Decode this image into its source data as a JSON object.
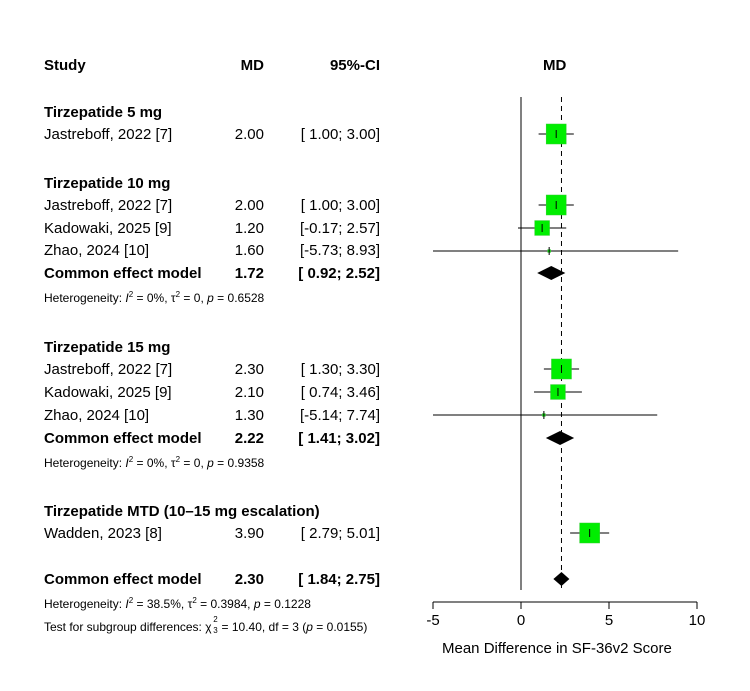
{
  "chart_data": {
    "type": "forest",
    "headers": {
      "study": "Study",
      "md": "MD",
      "ci": "95%-CI",
      "plot": "MD"
    },
    "xlabel": "Mean Difference in SF-36v2 Score",
    "xlim": [
      -5,
      10
    ],
    "xticks": [
      -5,
      0,
      5,
      10
    ],
    "reference_line": 0,
    "overall_line": 2.3,
    "groups": [
      {
        "label": "Tirzepatide 5 mg",
        "studies": [
          {
            "study": "Jastreboff, 2022 [7]",
            "md": 2.0,
            "md_text": "2.00",
            "lo": 1.0,
            "hi": 3.0,
            "ci_text": "[ 1.00; 3.00]",
            "weight": 1.0
          }
        ]
      },
      {
        "label": "Tirzepatide 10 mg",
        "studies": [
          {
            "study": "Jastreboff, 2022 [7]",
            "md": 2.0,
            "md_text": "2.00",
            "lo": 1.0,
            "hi": 3.0,
            "ci_text": "[ 1.00; 3.00]",
            "weight": 1.0
          },
          {
            "study": "Kadowaki, 2025 [9]",
            "md": 1.2,
            "md_text": "1.20",
            "lo": -0.17,
            "hi": 2.57,
            "ci_text": "[-0.17; 2.57]",
            "weight": 0.55
          },
          {
            "study": "Zhao, 2024 [10]",
            "md": 1.6,
            "md_text": "1.60",
            "lo": -5.73,
            "hi": 8.93,
            "ci_text": "[-5.73; 8.93]",
            "weight": 0.02
          }
        ],
        "summary": {
          "label": "Common effect model",
          "md": 1.72,
          "md_text": "1.72",
          "lo": 0.92,
          "hi": 2.52,
          "ci_text": "[ 0.92; 2.52]"
        },
        "heterogeneity": {
          "prefix": "Heterogeneity: ",
          "I2": "0%",
          "tau2": "0",
          "p": "0.6528"
        }
      },
      {
        "label": "Tirzepatide 15 mg",
        "studies": [
          {
            "study": "Jastreboff, 2022 [7]",
            "md": 2.3,
            "md_text": "2.30",
            "lo": 1.3,
            "hi": 3.3,
            "ci_text": "[ 1.30; 3.30]",
            "weight": 1.0
          },
          {
            "study": "Kadowaki, 2025 [9]",
            "md": 2.1,
            "md_text": "2.10",
            "lo": 0.74,
            "hi": 3.46,
            "ci_text": "[ 0.74; 3.46]",
            "weight": 0.55
          },
          {
            "study": "Zhao, 2024 [10]",
            "md": 1.3,
            "md_text": "1.30",
            "lo": -5.14,
            "hi": 7.74,
            "ci_text": "[-5.14; 7.74]",
            "weight": 0.02
          }
        ],
        "summary": {
          "label": "Common effect model",
          "md": 2.22,
          "md_text": "2.22",
          "lo": 1.41,
          "hi": 3.02,
          "ci_text": "[ 1.41; 3.02]"
        },
        "heterogeneity": {
          "prefix": "Heterogeneity: ",
          "I2": "0%",
          "tau2": "0",
          "p": "0.9358"
        }
      },
      {
        "label": "Tirzepatide MTD (10–15 mg escalation)",
        "studies": [
          {
            "study": "Wadden, 2023 [8]",
            "md": 3.9,
            "md_text": "3.90",
            "lo": 2.79,
            "hi": 5.01,
            "ci_text": "[ 2.79; 5.01]",
            "weight": 1.0
          }
        ]
      }
    ],
    "overall": {
      "label": "Common effect model",
      "md": 2.3,
      "md_text": "2.30",
      "lo": 1.84,
      "hi": 2.75,
      "ci_text": "[ 1.84; 2.75]",
      "heterogeneity": {
        "prefix": "Heterogeneity: ",
        "I2": "38.5%",
        "tau2": "0.3984",
        "p": "0.1228"
      },
      "subgroup_test": {
        "prefix": "Test for subgroup differences: ",
        "chi_sub": "3",
        "chi_sup": "2",
        "value": "10.40",
        "df": "3",
        "p": "0.0155"
      }
    },
    "colors": {
      "square": "#00ee00",
      "square_border": "#33cc33",
      "diamond": "#000000",
      "line": "#000000"
    }
  }
}
